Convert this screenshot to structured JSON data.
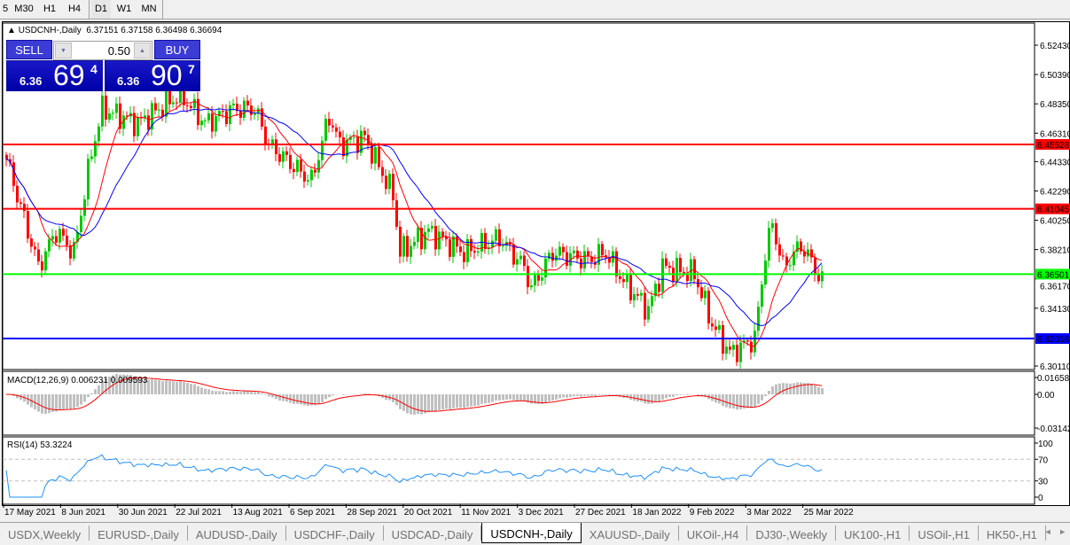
{
  "timeframes": [
    "5",
    "M30",
    "H1",
    "H4",
    "D1",
    "W1",
    "MN"
  ],
  "active_timeframe": "D1",
  "chart": {
    "title": "USDCNH-,Daily  6.37151 6.37158 6.36498 6.36694",
    "symbol": "USDCNH-,Daily",
    "ohlc": "6.37151 6.37158 6.36498 6.36694",
    "price_axis": [
      "6.52430",
      "6.50390",
      "6.48350",
      "6.46310",
      "6.44330",
      "6.42290",
      "6.40250",
      "6.38210",
      "6.36170",
      "6.34130",
      "6.30110"
    ],
    "levels": [
      {
        "price": "6.45528",
        "color": "#ff0000"
      },
      {
        "price": "6.41045",
        "color": "#ff0000"
      },
      {
        "price": "6.36501",
        "color": "#00ff00"
      },
      {
        "price": "6.32018",
        "color": "#0000ff"
      }
    ],
    "date_axis": [
      "17 May 2021",
      "8 Jun 2021",
      "30 Jun 2021",
      "22 Jul 2021",
      "13 Aug 2021",
      "6 Sep 2021",
      "28 Sep 2021",
      "20 Oct 2021",
      "11 Nov 2021",
      "3 Dec 2021",
      "27 Dec 2021",
      "18 Jan 2022",
      "9 Feb 2022",
      "3 Mar 2022",
      "25 Mar 2022"
    ],
    "close_path": [
      [
        0,
        6.445
      ],
      [
        9,
        6.37
      ],
      [
        14,
        6.395
      ],
      [
        19,
        6.38
      ],
      [
        24,
        6.45
      ],
      [
        27,
        6.48
      ],
      [
        37,
        6.47
      ],
      [
        49,
        6.49
      ],
      [
        56,
        6.47
      ],
      [
        64,
        6.48
      ],
      [
        70,
        6.48
      ],
      [
        74,
        6.455
      ],
      [
        81,
        6.44
      ],
      [
        86,
        6.43
      ],
      [
        91,
        6.475
      ],
      [
        94,
        6.455
      ],
      [
        101,
        6.46
      ],
      [
        109,
        6.42
      ],
      [
        111,
        6.38
      ],
      [
        119,
        6.395
      ],
      [
        129,
        6.38
      ],
      [
        139,
        6.39
      ],
      [
        146,
        6.37
      ],
      [
        148,
        6.355
      ],
      [
        154,
        6.38
      ],
      [
        164,
        6.375
      ],
      [
        169,
        6.38
      ],
      [
        174,
        6.36
      ],
      [
        181,
        6.34
      ],
      [
        185,
        6.37
      ],
      [
        194,
        6.365
      ],
      [
        199,
        6.33
      ],
      [
        204,
        6.31
      ],
      [
        211,
        6.32
      ],
      [
        214,
        6.38
      ],
      [
        216,
        6.4
      ],
      [
        219,
        6.37
      ],
      [
        224,
        6.385
      ],
      [
        228,
        6.37
      ],
      [
        229,
        6.362
      ],
      [
        230,
        6.367
      ]
    ],
    "up_color": "#00c800",
    "down_color": "#ff0000"
  },
  "trade": {
    "sell_label": "SELL",
    "buy_label": "BUY",
    "lot": "0.50",
    "sell_small": "6.36",
    "sell_big": "69",
    "sell_sup": "4",
    "buy_small": "6.36",
    "buy_big": "90",
    "buy_sup": "7"
  },
  "macd": {
    "label": "MACD(12,26,9) 0.006231 0.009593",
    "axis": [
      "0.016586",
      "0.00",
      "-0.03142"
    ]
  },
  "rsi": {
    "label": "RSI(14) 53.3224",
    "axis": [
      "100",
      "70",
      "30",
      "0"
    ]
  },
  "tabs": [
    "USDX,Weekly",
    "EURUSD-,Daily",
    "AUDUSD-,Daily",
    "USDCHF-,Daily",
    "USDCAD-,Daily",
    "USDCNH-,Daily",
    "XAUUSD-,Daily",
    "UKOil-,H4",
    "DJ30-,Weekly",
    "UK100-,H1",
    "USOil-,H1",
    "HK50-,H1"
  ],
  "active_tab": "USDCNH-,Daily"
}
